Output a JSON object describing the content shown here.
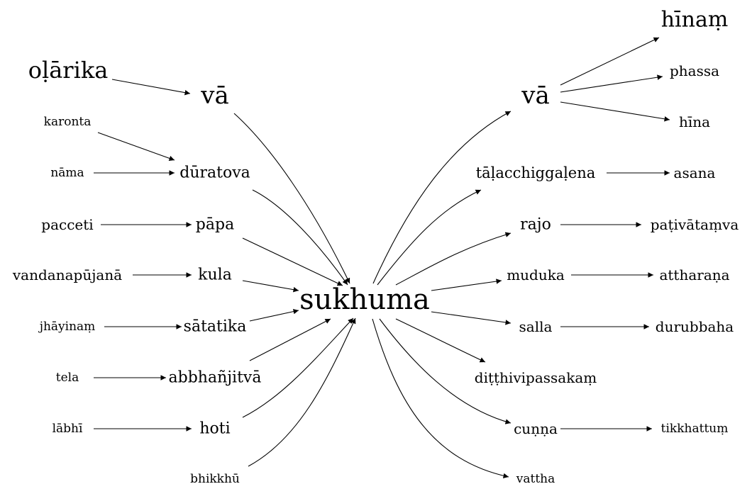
{
  "diagram": {
    "type": "directed-graph",
    "center_node": "sukhuma",
    "nodes": {
      "sukhuma": "sukhuma",
      "olarika": "oḷārika",
      "va_left": "vā",
      "karonta": "karonta",
      "nama": "nāma",
      "duratova": "dūratova",
      "pacceti": "pacceti",
      "papa": "pāpa",
      "vandanapujana": "vandanapūjanā",
      "kula": "kula",
      "jhayinam": "jhāyinaṃ",
      "satatika": "sātatika",
      "tela": "tela",
      "abbhanjitva": "abbhañjitvā",
      "labhi": "lābhī",
      "hoti": "hoti",
      "bhikkhu": "bhikkhū",
      "va_right": "vā",
      "hinam": "hīnaṃ",
      "phassa": "phassa",
      "hina": "hīna",
      "talacchiggalena": "tāḷacchiggaḷena",
      "asana": "asana",
      "rajo": "rajo",
      "pativatamva": "paṭivātaṃva",
      "muduka": "muduka",
      "attharana": "attharaṇa",
      "salla": "salla",
      "durubbaha": "durubbaha",
      "ditthivipassakam": "diṭṭhivipassakaṃ",
      "cunna": "cuṇṇa",
      "tikkhattum": "tikkhattuṃ",
      "vattha": "vattha"
    },
    "edges": [
      [
        "olarika",
        "va_left"
      ],
      [
        "karonta",
        "duratova"
      ],
      [
        "nama",
        "duratova"
      ],
      [
        "pacceti",
        "papa"
      ],
      [
        "vandanapujana",
        "kula"
      ],
      [
        "jhayinam",
        "satatika"
      ],
      [
        "tela",
        "abbhanjitva"
      ],
      [
        "labhi",
        "hoti"
      ],
      [
        "va_left",
        "sukhuma"
      ],
      [
        "duratova",
        "sukhuma"
      ],
      [
        "papa",
        "sukhuma"
      ],
      [
        "kula",
        "sukhuma"
      ],
      [
        "satatika",
        "sukhuma"
      ],
      [
        "abbhanjitva",
        "sukhuma"
      ],
      [
        "hoti",
        "sukhuma"
      ],
      [
        "bhikkhu",
        "sukhuma"
      ],
      [
        "sukhuma",
        "va_right"
      ],
      [
        "sukhuma",
        "talacchiggalena"
      ],
      [
        "sukhuma",
        "rajo"
      ],
      [
        "sukhuma",
        "muduka"
      ],
      [
        "sukhuma",
        "salla"
      ],
      [
        "sukhuma",
        "ditthivipassakam"
      ],
      [
        "sukhuma",
        "cunna"
      ],
      [
        "sukhuma",
        "vattha"
      ],
      [
        "va_right",
        "hinam"
      ],
      [
        "va_right",
        "phassa"
      ],
      [
        "va_right",
        "hina"
      ],
      [
        "talacchiggalena",
        "asana"
      ],
      [
        "rajo",
        "pativatamva"
      ],
      [
        "muduka",
        "attharana"
      ],
      [
        "salla",
        "durubbaha"
      ],
      [
        "cunna",
        "tikkhattum"
      ]
    ]
  }
}
